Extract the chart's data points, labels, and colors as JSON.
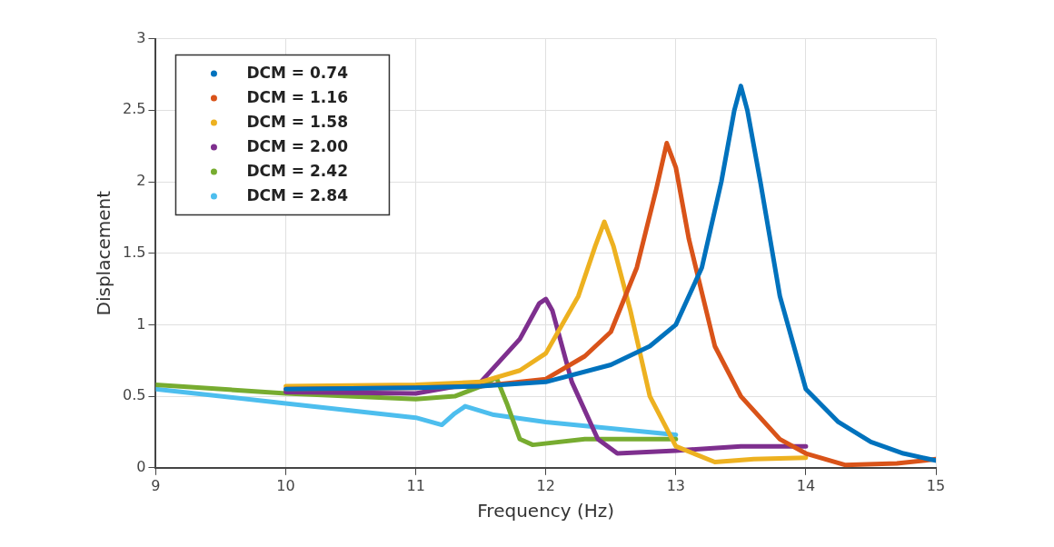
{
  "chart_data": {
    "type": "line",
    "xlabel": "Frequency (Hz)",
    "ylabel": "Displacement",
    "xlim": [
      9,
      15
    ],
    "xticks": [
      9,
      10,
      11,
      12,
      13,
      14,
      15
    ],
    "ylim": [
      0,
      3
    ],
    "yticks": [
      0,
      0.5,
      1,
      1.5,
      2,
      2.5,
      3
    ],
    "grid": true,
    "legend": "top left",
    "marker": "none",
    "line_style": "solid",
    "series": [
      {
        "name": "DCM = 0.74",
        "color": "#0072bd",
        "x": [
          10,
          11,
          11.5,
          12,
          12.5,
          12.8,
          13,
          13.2,
          13.35,
          13.45,
          13.5,
          13.55,
          13.65,
          13.8,
          14,
          14.25,
          14.5,
          14.75,
          15
        ],
        "values": [
          0.55,
          0.56,
          0.57,
          0.6,
          0.72,
          0.85,
          1.0,
          1.4,
          2.0,
          2.5,
          2.67,
          2.5,
          2.0,
          1.2,
          0.55,
          0.32,
          0.18,
          0.1,
          0.05
        ]
      },
      {
        "name": "DCM = 1.16",
        "color": "#d95319",
        "x": [
          10,
          11,
          11.5,
          12,
          12.3,
          12.5,
          12.7,
          12.85,
          12.93,
          13,
          13.1,
          13.3,
          13.5,
          13.8,
          14,
          14.3,
          14.7,
          15
        ],
        "values": [
          0.55,
          0.56,
          0.57,
          0.62,
          0.78,
          0.95,
          1.4,
          1.95,
          2.27,
          2.1,
          1.6,
          0.85,
          0.5,
          0.2,
          0.1,
          0.02,
          0.03,
          0.06
        ]
      },
      {
        "name": "DCM = 1.58",
        "color": "#edb120",
        "x": [
          10,
          11,
          11.5,
          11.8,
          12,
          12.25,
          12.38,
          12.45,
          12.52,
          12.65,
          12.8,
          13,
          13.3,
          13.6,
          14
        ],
        "values": [
          0.57,
          0.58,
          0.6,
          0.68,
          0.8,
          1.2,
          1.55,
          1.72,
          1.55,
          1.1,
          0.5,
          0.15,
          0.04,
          0.06,
          0.07
        ]
      },
      {
        "name": "DCM = 2.00",
        "color": "#7e2f8e",
        "x": [
          10,
          11,
          11.5,
          11.8,
          11.95,
          12,
          12.05,
          12.2,
          12.4,
          12.55,
          13,
          13.5,
          14
        ],
        "values": [
          0.53,
          0.52,
          0.6,
          0.9,
          1.15,
          1.18,
          1.1,
          0.6,
          0.2,
          0.1,
          0.12,
          0.15,
          0.15
        ]
      },
      {
        "name": "DCM = 2.42",
        "color": "#77ac30",
        "x": [
          9,
          10,
          11,
          11.3,
          11.5,
          11.62,
          11.7,
          11.8,
          11.9,
          12.3,
          13
        ],
        "values": [
          0.58,
          0.52,
          0.48,
          0.5,
          0.57,
          0.63,
          0.45,
          0.2,
          0.16,
          0.2,
          0.2
        ]
      },
      {
        "name": "DCM = 2.84",
        "color": "#4dbeee",
        "x": [
          9,
          10,
          11,
          11.2,
          11.3,
          11.38,
          11.6,
          12,
          13
        ],
        "values": [
          0.55,
          0.45,
          0.35,
          0.3,
          0.38,
          0.43,
          0.37,
          0.32,
          0.23
        ]
      }
    ]
  }
}
